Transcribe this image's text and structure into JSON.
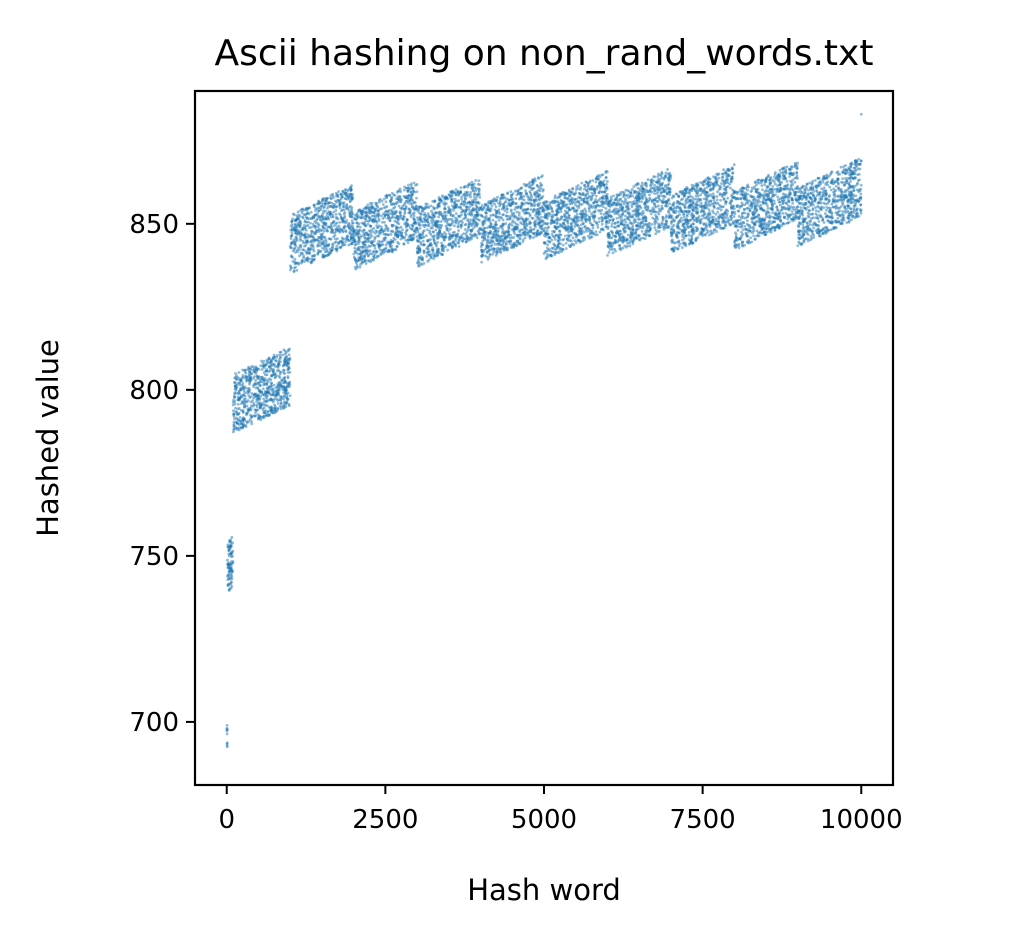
{
  "chart_data": {
    "type": "scatter",
    "title": "Ascii hashing on non_rand_words.txt",
    "xlabel": "Hash word",
    "ylabel": "Hashed value",
    "xlim": [
      -500,
      10500
    ],
    "ylim": [
      681,
      890
    ],
    "x_ticks": [
      0,
      2500,
      5000,
      7500,
      10000
    ],
    "x_tick_labels": [
      "0",
      "2500",
      "5000",
      "7500",
      "10000"
    ],
    "y_ticks": [
      700,
      750,
      800,
      850
    ],
    "y_tick_labels": [
      "700",
      "750",
      "800",
      "850"
    ],
    "grid": false,
    "marker_color": "#1f77b4",
    "marker_alpha": 0.5,
    "clusters": [
      {
        "x_range": [
          0,
          10
        ],
        "y_min": 691,
        "y_max": 699,
        "slope": 0
      },
      {
        "x_range": [
          10,
          100
        ],
        "y_min": 739,
        "y_max": 756,
        "slope": 0.02
      },
      {
        "x_range": [
          100,
          1000
        ],
        "y_min": 787,
        "y_max": 813,
        "slope": 0.0092
      },
      {
        "x_range": [
          1000,
          2000
        ],
        "y_min": 835,
        "y_max": 862,
        "slope": 0.0092
      },
      {
        "x_range": [
          2000,
          3000
        ],
        "y_min": 836,
        "y_max": 863,
        "slope": 0.0092
      },
      {
        "x_range": [
          3000,
          4000
        ],
        "y_min": 837,
        "y_max": 864,
        "slope": 0.0092
      },
      {
        "x_range": [
          4000,
          5000
        ],
        "y_min": 838,
        "y_max": 865,
        "slope": 0.0092
      },
      {
        "x_range": [
          5000,
          6000
        ],
        "y_min": 839,
        "y_max": 866,
        "slope": 0.0092
      },
      {
        "x_range": [
          6000,
          7000
        ],
        "y_min": 840,
        "y_max": 867,
        "slope": 0.0092
      },
      {
        "x_range": [
          7000,
          8000
        ],
        "y_min": 841,
        "y_max": 868,
        "slope": 0.0092
      },
      {
        "x_range": [
          8000,
          9000
        ],
        "y_min": 842,
        "y_max": 869,
        "slope": 0.0092
      },
      {
        "x_range": [
          9000,
          10000
        ],
        "y_min": 843,
        "y_max": 870,
        "slope": 0.0092
      }
    ],
    "outliers": [
      {
        "x": 10000,
        "y": 883
      }
    ]
  }
}
